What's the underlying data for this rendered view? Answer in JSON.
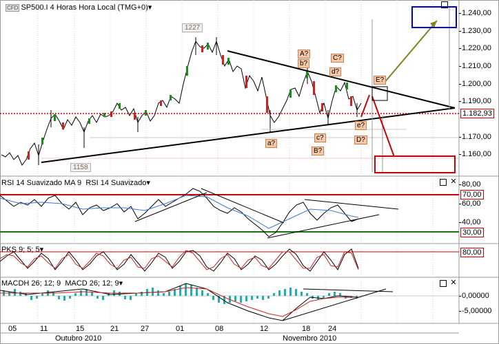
{
  "main": {
    "title": "SP500.I 4 Horas Hora Local (TMG+0)",
    "logo": "CFD",
    "dropdown_icon": "caret-down-icon",
    "yaxis": [
      "1.240,00",
      "1.230,00",
      "1.220,00",
      "1.210,00",
      "1.200,00",
      "1.190,00",
      "1.170,00",
      "1.160,00"
    ],
    "current_price": "1.182,93",
    "high_tag": "1227",
    "low_tag": "1158",
    "waves": {
      "A": "A?",
      "b": "b?",
      "C": "C?",
      "d": "d?",
      "E": "E?",
      "a": "a?",
      "c": "c?",
      "B": "B?",
      "D": "D?",
      "e": "e?"
    }
  },
  "rsi": {
    "title_left": "RSI 14 Suavizado MA 9",
    "title_right": "RSI 14 Suavizado",
    "yaxis": [
      "80,00",
      "60,00",
      "40,00"
    ],
    "level_high": "70,00",
    "level_low": "30,00"
  },
  "pks": {
    "title": "PKS 9; 5; 5",
    "level": "80,00"
  },
  "macd": {
    "title_left": "MACDH 26; 12; 9",
    "title_right": "MACD 26; 12; 9",
    "yaxis": [
      "0,00000",
      "-5,00000"
    ]
  },
  "xaxis": {
    "days": [
      "05",
      "11",
      "15",
      "21",
      "27",
      "01",
      "08",
      "12",
      "18",
      "24"
    ],
    "months": [
      "Outubro 2010",
      "Novembro 2010"
    ]
  },
  "colors": {
    "red": "#cc0000",
    "green": "#117711",
    "blue": "#0000cc",
    "olive": "#808020",
    "teal": "#20b0b0"
  }
}
